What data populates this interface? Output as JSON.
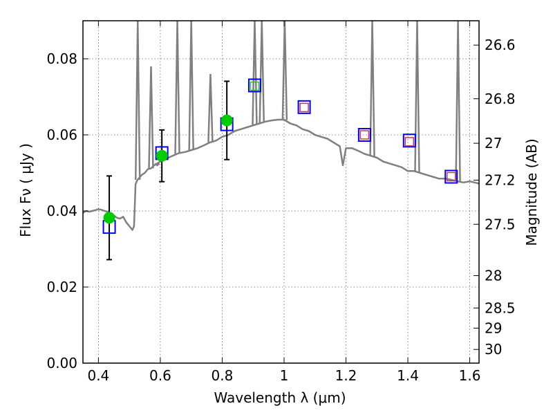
{
  "chart_data": {
    "type": "scatter",
    "xlabel": "Wavelength  λ (μm)",
    "ylabel": "Flux  Fν  ( μJy )",
    "y2label": "Magnitude (AB)",
    "xlim": [
      0.35,
      1.63
    ],
    "ylim": [
      0.0,
      0.09
    ],
    "grid": true,
    "x_ticks": [
      0.4,
      0.6,
      0.8,
      1.0,
      1.2,
      1.4,
      1.6
    ],
    "x_tick_labels": [
      "0.4",
      "0.6",
      "0.8",
      "1",
      "1.2",
      "1.4",
      "1.6"
    ],
    "y_ticks": [
      0.0,
      0.02,
      0.04,
      0.06,
      0.08
    ],
    "y_tick_labels": [
      "0.00",
      "0.02",
      "0.04",
      "0.06",
      "0.08"
    ],
    "mag_ticks": [
      {
        "label": "26.6",
        "flux": 0.0836
      },
      {
        "label": "26.8",
        "flux": 0.0695
      },
      {
        "label": "27",
        "flux": 0.0578
      },
      {
        "label": "27.2",
        "flux": 0.0481
      },
      {
        "label": "27.5",
        "flux": 0.0365
      },
      {
        "label": "28",
        "flux": 0.023
      },
      {
        "label": "28.5",
        "flux": 0.0145
      },
      {
        "label": "29",
        "flux": 0.0092
      },
      {
        "label": "30",
        "flux": 0.0036
      }
    ],
    "series": [
      {
        "kind": "model_spectrum",
        "color": "#808080",
        "x": [
          0.35,
          0.36,
          0.37,
          0.38,
          0.39,
          0.4,
          0.41,
          0.42,
          0.43,
          0.44,
          0.45,
          0.46,
          0.47,
          0.48,
          0.49,
          0.5,
          0.51,
          0.515,
          0.52,
          0.525,
          0.53,
          0.54,
          0.55,
          0.56,
          0.57,
          0.58,
          0.59,
          0.6,
          0.62,
          0.64,
          0.66,
          0.68,
          0.7,
          0.72,
          0.74,
          0.76,
          0.78,
          0.8,
          0.82,
          0.84,
          0.86,
          0.88,
          0.9,
          0.92,
          0.94,
          0.96,
          0.98,
          1.0,
          1.02,
          1.04,
          1.06,
          1.08,
          1.1,
          1.12,
          1.14,
          1.16,
          1.18,
          1.19,
          1.2,
          1.22,
          1.24,
          1.26,
          1.28,
          1.3,
          1.32,
          1.34,
          1.36,
          1.38,
          1.4,
          1.42,
          1.44,
          1.46,
          1.48,
          1.5,
          1.52,
          1.54,
          1.56,
          1.58,
          1.6,
          1.63
        ],
        "y": [
          0.0395,
          0.04,
          0.0398,
          0.04,
          0.0402,
          0.0405,
          0.0403,
          0.04,
          0.0398,
          0.0392,
          0.0388,
          0.0382,
          0.038,
          0.0385,
          0.037,
          0.036,
          0.035,
          0.036,
          0.047,
          0.048,
          0.0485,
          0.0495,
          0.05,
          0.051,
          0.0512,
          0.052,
          0.0525,
          0.053,
          0.0538,
          0.0545,
          0.0552,
          0.0555,
          0.056,
          0.0565,
          0.0572,
          0.058,
          0.0585,
          0.0595,
          0.06,
          0.061,
          0.0615,
          0.062,
          0.0625,
          0.063,
          0.0635,
          0.0638,
          0.064,
          0.064,
          0.063,
          0.0625,
          0.0615,
          0.061,
          0.06,
          0.0595,
          0.059,
          0.058,
          0.057,
          0.052,
          0.0565,
          0.0565,
          0.0558,
          0.055,
          0.0545,
          0.054,
          0.053,
          0.0525,
          0.052,
          0.0515,
          0.0505,
          0.0505,
          0.05,
          0.0495,
          0.049,
          0.0485,
          0.0485,
          0.0482,
          0.0478,
          0.0475,
          0.0478,
          0.0472
        ]
      },
      {
        "kind": "emission_lines",
        "color": "#808080",
        "lines": [
          {
            "x": 0.527,
            "y": 0.09
          },
          {
            "x": 0.57,
            "y": 0.078
          },
          {
            "x": 0.59,
            "y": 0.052
          },
          {
            "x": 0.655,
            "y": 0.09
          },
          {
            "x": 0.7,
            "y": 0.09
          },
          {
            "x": 0.762,
            "y": 0.076
          },
          {
            "x": 0.905,
            "y": 0.09
          },
          {
            "x": 0.928,
            "y": 0.09
          },
          {
            "x": 1.002,
            "y": 0.09
          },
          {
            "x": 1.285,
            "y": 0.09
          },
          {
            "x": 1.43,
            "y": 0.09
          },
          {
            "x": 1.562,
            "y": 0.09
          }
        ]
      },
      {
        "kind": "observed_points",
        "color": "#00cc00",
        "errcolor": "#000000",
        "x": [
          0.435,
          0.605,
          0.815
        ],
        "y": [
          0.0382,
          0.0545,
          0.0638
        ],
        "err": [
          0.011,
          0.0068,
          0.0103
        ]
      },
      {
        "kind": "model_photometry_blue",
        "color": "#0000ff",
        "x": [
          0.435,
          0.605,
          0.815,
          0.905,
          1.065,
          1.26,
          1.405,
          1.54
        ],
        "y": [
          0.0358,
          0.0552,
          0.0628,
          0.073,
          0.0673,
          0.06,
          0.0585,
          0.049
        ]
      },
      {
        "kind": "model_photometry_inner",
        "x": [
          0.905,
          1.065,
          1.26,
          1.405,
          1.54
        ],
        "y": [
          0.0728,
          0.0672,
          0.06,
          0.0582,
          0.049
        ],
        "colors": [
          "#33bb33",
          "#cc3355",
          "#cc3355",
          "#cc3355",
          "#cc3355"
        ]
      }
    ]
  }
}
